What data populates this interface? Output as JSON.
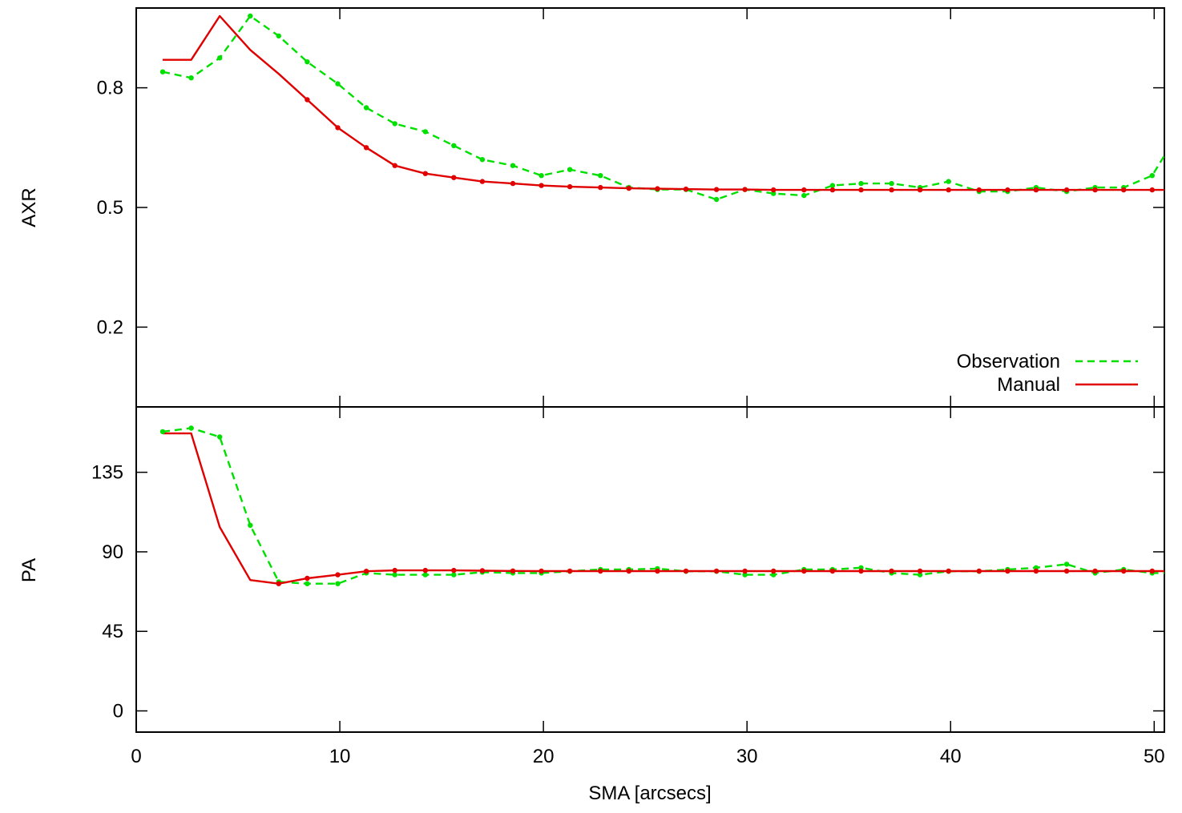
{
  "figure": {
    "xlabel": "SMA [arcsecs]",
    "legend_position": "bottom-right of top panel",
    "series_styles": [
      {
        "name": "Observation",
        "color": "#00e000",
        "dash": "dashed"
      },
      {
        "name": "Manual",
        "color": "#e00000",
        "dash": "solid"
      }
    ]
  },
  "chart_data": [
    {
      "type": "line",
      "panel": "top",
      "ylabel": "AXR",
      "xlim": [
        0,
        50.5
      ],
      "ylim": [
        0.0,
        1.0
      ],
      "x_ticks": [
        0,
        10,
        20,
        30,
        40,
        50
      ],
      "y_ticks": [
        0.2,
        0.5,
        0.8
      ],
      "y_tick_labels": [
        "0.2",
        "0.5",
        "0.8"
      ],
      "grid": false,
      "legend": [
        "Observation",
        "Manual"
      ],
      "series": [
        {
          "name": "Observation",
          "x": [
            1.3,
            2.7,
            4.1,
            5.6,
            7.0,
            8.4,
            9.9,
            11.3,
            12.7,
            14.2,
            15.6,
            17.0,
            18.5,
            19.9,
            21.3,
            22.8,
            24.2,
            25.6,
            27.0,
            28.5,
            29.9,
            31.3,
            32.8,
            34.2,
            35.6,
            37.1,
            38.5,
            39.9,
            41.4,
            42.8,
            44.2,
            45.7,
            47.1,
            48.5,
            49.9,
            50.5
          ],
          "y": [
            0.84,
            0.825,
            0.875,
            0.98,
            0.93,
            0.865,
            0.81,
            0.75,
            0.71,
            0.69,
            0.655,
            0.62,
            0.605,
            0.58,
            0.595,
            0.58,
            0.55,
            0.545,
            0.545,
            0.52,
            0.545,
            0.535,
            0.53,
            0.555,
            0.56,
            0.56,
            0.55,
            0.565,
            0.54,
            0.54,
            0.55,
            0.54,
            0.55,
            0.55,
            0.58,
            0.63
          ]
        },
        {
          "name": "Manual",
          "x": [
            1.3,
            2.7,
            4.1,
            5.6,
            7.0,
            8.4,
            9.9,
            11.3,
            12.7,
            14.2,
            15.6,
            17.0,
            18.5,
            19.9,
            21.3,
            22.8,
            24.2,
            25.6,
            27.0,
            28.5,
            29.9,
            31.3,
            32.8,
            34.2,
            35.6,
            37.1,
            38.5,
            39.9,
            41.4,
            42.8,
            44.2,
            45.7,
            47.1,
            48.5,
            49.9,
            50.5
          ],
          "y": [
            0.87,
            0.87,
            0.98,
            0.895,
            0.835,
            0.77,
            0.7,
            0.65,
            0.605,
            0.585,
            0.575,
            0.565,
            0.56,
            0.555,
            0.552,
            0.55,
            0.548,
            0.547,
            0.546,
            0.545,
            0.545,
            0.544,
            0.544,
            0.544,
            0.544,
            0.544,
            0.544,
            0.544,
            0.544,
            0.544,
            0.544,
            0.544,
            0.544,
            0.544,
            0.544,
            0.544
          ]
        }
      ]
    },
    {
      "type": "line",
      "panel": "bottom",
      "ylabel": "PA",
      "xlim": [
        0,
        50.5
      ],
      "ylim": [
        -12,
        172
      ],
      "x_ticks": [
        0,
        10,
        20,
        30,
        40,
        50
      ],
      "x_tick_labels": [
        "0",
        "10",
        "20",
        "30",
        "40",
        "50"
      ],
      "y_ticks": [
        0,
        45,
        90,
        135
      ],
      "y_tick_labels": [
        "0",
        "45",
        "90",
        "135"
      ],
      "grid": false,
      "series": [
        {
          "name": "Observation",
          "x": [
            1.3,
            2.7,
            4.1,
            5.6,
            7.0,
            8.4,
            9.9,
            11.3,
            12.7,
            14.2,
            15.6,
            17.0,
            18.5,
            19.9,
            21.3,
            22.8,
            24.2,
            25.6,
            27.0,
            28.5,
            29.9,
            31.3,
            32.8,
            34.2,
            35.6,
            37.1,
            38.5,
            39.9,
            41.4,
            42.8,
            44.2,
            45.7,
            47.1,
            48.5,
            49.9,
            50.5
          ],
          "y": [
            158,
            160,
            155,
            105,
            73,
            72,
            72,
            78,
            77,
            77,
            77,
            78.5,
            78,
            78,
            79,
            80,
            80,
            80.5,
            79,
            79,
            77,
            77,
            80,
            80,
            81,
            78,
            77,
            79,
            79,
            80,
            81,
            83,
            78,
            80,
            78,
            78
          ]
        },
        {
          "name": "Manual",
          "x": [
            1.3,
            2.7,
            4.1,
            5.6,
            7.0,
            8.4,
            9.9,
            11.3,
            12.7,
            14.2,
            15.6,
            17.0,
            18.5,
            19.9,
            21.3,
            22.8,
            24.2,
            25.6,
            27.0,
            28.5,
            29.9,
            31.3,
            32.8,
            34.2,
            35.6,
            37.1,
            38.5,
            39.9,
            41.4,
            42.8,
            44.2,
            45.7,
            47.1,
            48.5,
            49.9,
            50.5
          ],
          "y": [
            157,
            157,
            104,
            74,
            72,
            75,
            77,
            79,
            79.5,
            79.5,
            79.5,
            79.3,
            79.2,
            79.1,
            79.1,
            79.1,
            79.1,
            79.1,
            79.1,
            79.1,
            79.1,
            79.1,
            79.1,
            79.1,
            79.1,
            79.1,
            79.1,
            79.1,
            79.1,
            79.1,
            79.1,
            79.1,
            79.1,
            79.1,
            79.1,
            79.1
          ]
        }
      ]
    }
  ]
}
